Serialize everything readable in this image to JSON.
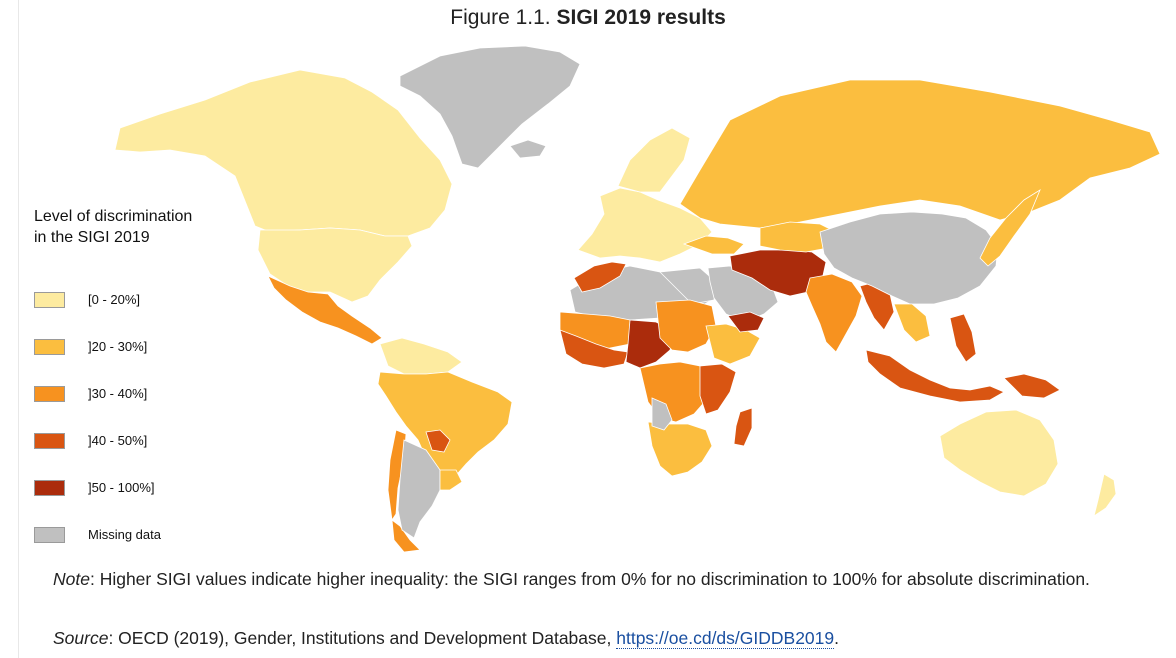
{
  "figure": {
    "number": "Figure 1.1.",
    "title": "SIGI 2019 results"
  },
  "legend": {
    "title_line1": "Level of discrimination",
    "title_line2": "in the SIGI 2019",
    "items": [
      {
        "label": "[0 - 20%]",
        "color": "#fdeba0"
      },
      {
        "label": "]20 - 30%]",
        "color": "#fbbe3f"
      },
      {
        "label": "]30 - 40%]",
        "color": "#f7921f"
      },
      {
        "label": "]40 - 50%]",
        "color": "#d95512"
      },
      {
        "label": "]50 - 100%]",
        "color": "#ab2c0c"
      },
      {
        "label": "Missing data",
        "color": "#c0c0c0"
      }
    ]
  },
  "note": {
    "label": "Note",
    "text": ": Higher SIGI values indicate higher inequality: the SIGI ranges from 0% for no discrimination to 100% for absolute discrimination."
  },
  "source": {
    "label": "Source",
    "text": ": OECD (2019), Gender, Institutions and Development Database, ",
    "link": "https://oe.cd/ds/GIDDB2019",
    "end": "."
  },
  "chart_data": {
    "type": "choropleth",
    "title": "SIGI 2019 results",
    "scale": [
      "[0 - 20%]",
      "]20 - 30%]",
      "]30 - 40%]",
      "]40 - 50%]",
      "]50 - 100%]",
      "Missing data"
    ],
    "regions": [
      {
        "name": "canada-alaska",
        "category": 0
      },
      {
        "name": "usa",
        "category": 0
      },
      {
        "name": "mexico-central-america",
        "category": 2
      },
      {
        "name": "greenland",
        "category": 5
      },
      {
        "name": "venezuela-colombia",
        "category": 0
      },
      {
        "name": "south-america",
        "category": 1
      },
      {
        "name": "chile",
        "category": 2
      },
      {
        "name": "patagonia",
        "category": 2
      },
      {
        "name": "paraguay",
        "category": 3
      },
      {
        "name": "argentina",
        "category": 5
      },
      {
        "name": "uruguay",
        "category": 1
      },
      {
        "name": "iceland",
        "category": 5
      },
      {
        "name": "europe",
        "category": 0
      },
      {
        "name": "scandinavia",
        "category": 0
      },
      {
        "name": "russia",
        "category": 1
      },
      {
        "name": "north-africa",
        "category": 5
      },
      {
        "name": "egypt-libya",
        "category": 5
      },
      {
        "name": "morocco-algeria-north",
        "category": 3
      },
      {
        "name": "sahel-west-africa",
        "category": 2
      },
      {
        "name": "west-africa-coast",
        "category": 3
      },
      {
        "name": "chad-niger",
        "category": 4
      },
      {
        "name": "sudan",
        "category": 2
      },
      {
        "name": "ethiopia-horn",
        "category": 1
      },
      {
        "name": "central-africa",
        "category": 2
      },
      {
        "name": "east-africa",
        "category": 3
      },
      {
        "name": "southern-africa",
        "category": 1
      },
      {
        "name": "angola-drc-south",
        "category": 5
      },
      {
        "name": "madagascar",
        "category": 3
      },
      {
        "name": "saudi-arabia",
        "category": 5
      },
      {
        "name": "yemen",
        "category": 4
      },
      {
        "name": "turkey",
        "category": 1
      },
      {
        "name": "middle-east-iran-afghanistan",
        "category": 4
      },
      {
        "name": "central-asia",
        "category": 1
      },
      {
        "name": "india",
        "category": 2
      },
      {
        "name": "bangladesh-myanmar",
        "category": 3
      },
      {
        "name": "china-mongolia",
        "category": 5
      },
      {
        "name": "japan-korea",
        "category": 1
      },
      {
        "name": "southeast-asia",
        "category": 1
      },
      {
        "name": "philippines",
        "category": 3
      },
      {
        "name": "indonesia",
        "category": 3
      },
      {
        "name": "papua",
        "category": 3
      },
      {
        "name": "australia",
        "category": 0
      },
      {
        "name": "new-zealand",
        "category": 0
      }
    ]
  }
}
